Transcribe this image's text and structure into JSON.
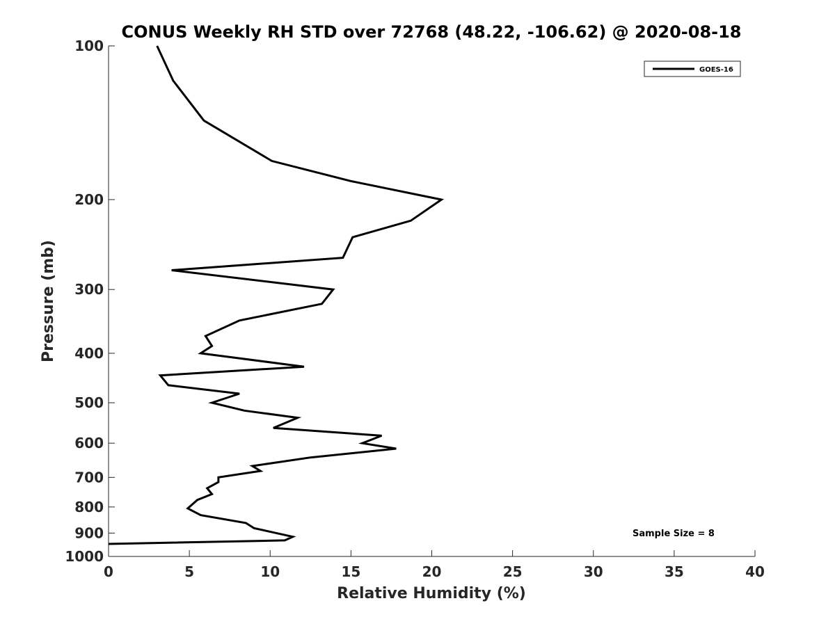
{
  "chart_data": {
    "type": "line",
    "title": "CONUS Weekly RH STD over 72768 (48.22, -106.62) @ 2020-08-18",
    "xlabel": "Relative Humidity (%)",
    "ylabel": "Pressure (mb)",
    "xlim": [
      0,
      40
    ],
    "ylim": [
      100,
      1000
    ],
    "y_scale": "log",
    "y_reversed": true,
    "xticks": [
      0,
      5,
      10,
      15,
      20,
      25,
      30,
      35,
      40
    ],
    "yticks": [
      100,
      200,
      300,
      400,
      500,
      600,
      700,
      800,
      900,
      1000
    ],
    "grid": false,
    "legend_position": "top-right",
    "annotation": "Sample Size = 8",
    "series": [
      {
        "name": "GOES-16",
        "color": "#000000",
        "x": [
          3.0,
          4.0,
          5.9,
          10.1,
          15.0,
          20.6,
          18.7,
          15.1,
          14.5,
          3.9,
          13.9,
          13.2,
          8.1,
          6.0,
          6.4,
          5.7,
          12.1,
          3.2,
          3.7,
          8.1,
          6.4,
          8.4,
          11.7,
          10.2,
          16.9,
          15.7,
          17.8,
          12.5,
          8.9,
          9.4,
          6.8,
          6.8,
          6.1,
          6.4,
          5.5,
          4.9,
          5.7,
          8.5,
          9.0,
          11.4,
          10.9,
          0.0
        ],
        "y": [
          100,
          117,
          140,
          168,
          184,
          200,
          220,
          237,
          260,
          275,
          300,
          320,
          345,
          370,
          387,
          400,
          425,
          442,
          462,
          480,
          500,
          518,
          535,
          560,
          580,
          600,
          615,
          640,
          665,
          680,
          700,
          715,
          735,
          755,
          775,
          805,
          830,
          860,
          880,
          915,
          930,
          945
        ]
      }
    ]
  }
}
